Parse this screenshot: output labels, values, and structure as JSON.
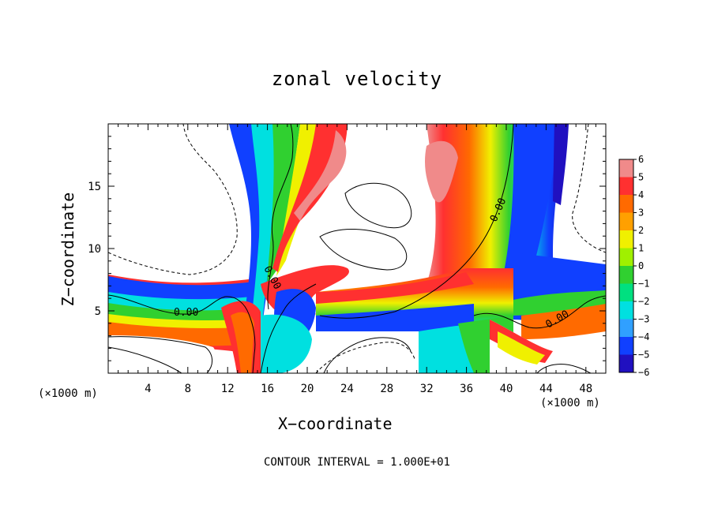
{
  "chart_data": {
    "type": "heatmap",
    "title": "zonal velocity",
    "xlabel": "X−coordinate",
    "ylabel": "Z−coordinate",
    "x_unit": "(×1000 m)",
    "z_unit": "(×1000 m)",
    "footer": "CONTOUR INTERVAL = 1.000E+01",
    "xlim": [
      0,
      50
    ],
    "ylim": [
      0,
      20
    ],
    "x_ticks": [
      4,
      8,
      12,
      16,
      20,
      24,
      28,
      32,
      36,
      40,
      44,
      48
    ],
    "y_ticks": [
      5,
      10,
      15
    ],
    "colorbar": {
      "levels": [
        6,
        5,
        4,
        3,
        2,
        1,
        0,
        -1,
        -2,
        -3,
        -4,
        -5,
        -6
      ],
      "colors": [
        "#f08a8a",
        "#ff3030",
        "#ff6a00",
        "#ffa000",
        "#f0f000",
        "#a0f000",
        "#30d030",
        "#00e080",
        "#00e0e0",
        "#30a0ff",
        "#1040ff",
        "#2010c0",
        "#8000c0"
      ]
    },
    "contour_labels": [
      "0.00",
      "0.00",
      "0.00",
      "0.00"
    ]
  }
}
